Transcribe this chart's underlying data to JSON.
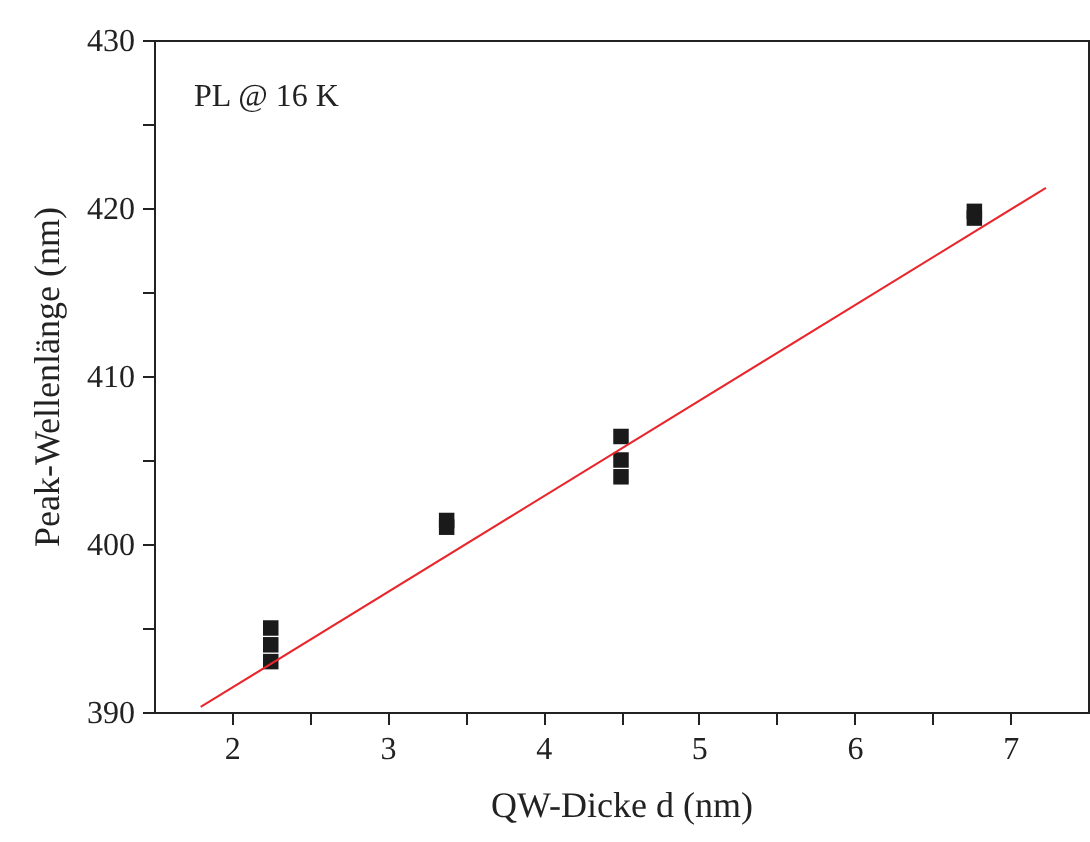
{
  "chart_data": {
    "type": "scatter",
    "xlabel": "QW-Dicke d (nm)",
    "ylabel": "Peak-Wellenlänge (nm)",
    "annotations": [
      "PL @ 16 K"
    ],
    "grid": false,
    "xlim": [
      1.5,
      7.5
    ],
    "ylim": [
      390,
      430
    ],
    "xticks": [
      2,
      {
        "value": 2.5,
        "label": null
      },
      3,
      {
        "value": 3.5,
        "label": null
      },
      4,
      {
        "value": 4.5,
        "label": null
      },
      5,
      {
        "value": 5.5,
        "label": null
      },
      6,
      {
        "value": 6.5,
        "label": null
      },
      7
    ],
    "yticks": [
      390,
      {
        "value": 395,
        "label": null
      },
      400,
      {
        "value": 405,
        "label": null
      },
      410,
      {
        "value": 415,
        "label": null
      },
      420,
      {
        "value": 425,
        "label": null
      },
      430
    ],
    "series": [
      {
        "color": "#1a1a1a",
        "marker": "square",
        "x": [
          2.25,
          2.25,
          2.25,
          3.38,
          3.38,
          4.5,
          4.5,
          4.5,
          6.77,
          6.77
        ],
        "values": [
          395,
          394,
          393,
          401.4,
          401,
          406.4,
          405,
          404,
          419.8,
          419.4
        ]
      },
      {
        "type": "line",
        "marker": "none",
        "color": "#e8262b",
        "x": [
          1.8,
          7.23
        ],
        "values": [
          390.3,
          421.2
        ]
      }
    ]
  }
}
